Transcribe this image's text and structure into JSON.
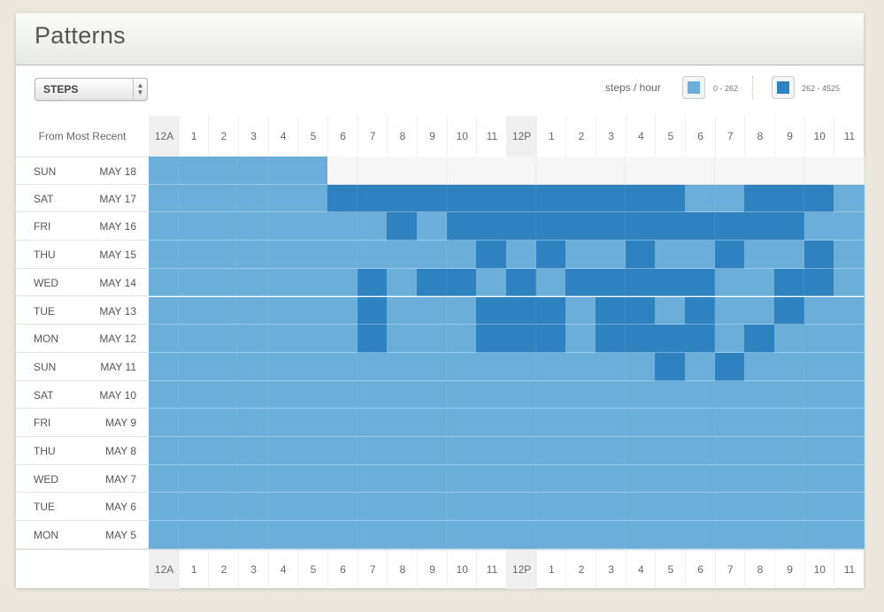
{
  "header": {
    "title": "Patterns"
  },
  "toolbar": {
    "metric": "STEPS",
    "legend_label": "steps / hour"
  },
  "legend": [
    {
      "range": "0 - 262",
      "color": "#6aaed9"
    },
    {
      "range": "262 - 4525",
      "color": "#2f82c0"
    }
  ],
  "grid": {
    "corner_label": "From Most Recent",
    "hours": [
      "12A",
      "1",
      "2",
      "3",
      "4",
      "5",
      "6",
      "7",
      "8",
      "9",
      "10",
      "11",
      "12P",
      "1",
      "2",
      "3",
      "4",
      "5",
      "6",
      "7",
      "8",
      "9",
      "10",
      "11"
    ],
    "rows": [
      {
        "dow": "SUN",
        "date": "MAY 18",
        "levels": [
          1,
          1,
          1,
          1,
          1,
          1,
          0,
          0,
          0,
          0,
          0,
          0,
          0,
          0,
          0,
          0,
          0,
          0,
          0,
          0,
          0,
          0,
          0,
          0
        ]
      },
      {
        "dow": "SAT",
        "date": "MAY 17",
        "levels": [
          1,
          1,
          1,
          1,
          1,
          1,
          2,
          2,
          2,
          2,
          2,
          2,
          2,
          2,
          2,
          2,
          2,
          2,
          1,
          1,
          2,
          2,
          2,
          1
        ]
      },
      {
        "dow": "FRI",
        "date": "MAY 16",
        "levels": [
          1,
          1,
          1,
          1,
          1,
          1,
          1,
          1,
          2,
          1,
          2,
          2,
          2,
          2,
          2,
          2,
          2,
          2,
          2,
          2,
          2,
          2,
          1,
          1
        ]
      },
      {
        "dow": "THU",
        "date": "MAY 15",
        "levels": [
          1,
          1,
          1,
          1,
          1,
          1,
          1,
          1,
          1,
          1,
          1,
          2,
          1,
          2,
          1,
          1,
          2,
          1,
          1,
          2,
          1,
          1,
          2,
          1
        ]
      },
      {
        "dow": "WED",
        "date": "MAY 14",
        "levels": [
          1,
          1,
          1,
          1,
          1,
          1,
          1,
          2,
          1,
          2,
          2,
          1,
          2,
          1,
          2,
          2,
          2,
          2,
          2,
          1,
          1,
          2,
          2,
          1
        ]
      },
      {
        "dow": "TUE",
        "date": "MAY 13",
        "levels": [
          1,
          1,
          1,
          1,
          1,
          1,
          1,
          2,
          1,
          1,
          1,
          2,
          2,
          2,
          1,
          2,
          2,
          1,
          2,
          1,
          1,
          2,
          1,
          1
        ]
      },
      {
        "dow": "MON",
        "date": "MAY 12",
        "levels": [
          1,
          1,
          1,
          1,
          1,
          1,
          1,
          2,
          1,
          1,
          1,
          2,
          2,
          2,
          1,
          2,
          2,
          2,
          2,
          1,
          2,
          1,
          1,
          1
        ]
      },
      {
        "dow": "SUN",
        "date": "MAY 11",
        "levels": [
          1,
          1,
          1,
          1,
          1,
          1,
          1,
          1,
          1,
          1,
          1,
          1,
          1,
          1,
          1,
          1,
          1,
          2,
          1,
          2,
          1,
          1,
          1,
          1
        ]
      },
      {
        "dow": "SAT",
        "date": "MAY 10",
        "levels": [
          1,
          1,
          1,
          1,
          1,
          1,
          1,
          1,
          1,
          1,
          1,
          1,
          1,
          1,
          1,
          1,
          1,
          1,
          1,
          1,
          1,
          1,
          1,
          1
        ]
      },
      {
        "dow": "FRI",
        "date": "MAY 9",
        "levels": [
          1,
          1,
          1,
          1,
          1,
          1,
          1,
          1,
          1,
          1,
          1,
          1,
          1,
          1,
          1,
          1,
          1,
          1,
          1,
          1,
          1,
          1,
          1,
          1
        ]
      },
      {
        "dow": "THU",
        "date": "MAY 8",
        "levels": [
          1,
          1,
          1,
          1,
          1,
          1,
          1,
          1,
          1,
          1,
          1,
          1,
          1,
          1,
          1,
          1,
          1,
          1,
          1,
          1,
          1,
          1,
          1,
          1
        ]
      },
      {
        "dow": "WED",
        "date": "MAY 7",
        "levels": [
          1,
          1,
          1,
          1,
          1,
          1,
          1,
          1,
          1,
          1,
          1,
          1,
          1,
          1,
          1,
          1,
          1,
          1,
          1,
          1,
          1,
          1,
          1,
          1
        ]
      },
      {
        "dow": "TUE",
        "date": "MAY 6",
        "levels": [
          1,
          1,
          1,
          1,
          1,
          1,
          1,
          1,
          1,
          1,
          1,
          1,
          1,
          1,
          1,
          1,
          1,
          1,
          1,
          1,
          1,
          1,
          1,
          1
        ]
      },
      {
        "dow": "MON",
        "date": "MAY 5",
        "levels": [
          1,
          1,
          1,
          1,
          1,
          1,
          1,
          1,
          1,
          1,
          1,
          1,
          1,
          1,
          1,
          1,
          1,
          1,
          1,
          1,
          1,
          1,
          1,
          1
        ]
      }
    ]
  }
}
